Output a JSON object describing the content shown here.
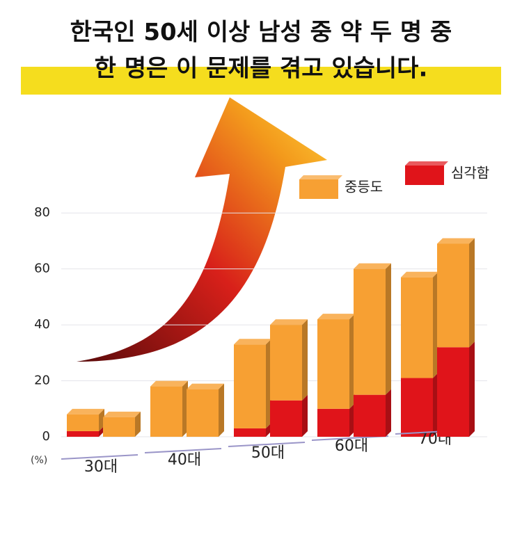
{
  "chart_data": {
    "type": "bar",
    "title": [
      "한국인 50세 이상 남성 중 약 두 명 중",
      "한 명은 이 문제를 겪고 있습니다."
    ],
    "y_unit": "(%)",
    "categories": [
      "30대",
      null,
      "40대",
      null,
      "50대",
      null,
      "60대",
      null,
      "70대",
      null
    ],
    "series": [
      {
        "name": "심각함",
        "color": "#e0141a",
        "values": [
          2,
          0,
          0,
          0,
          3,
          13,
          10,
          15,
          21,
          32
        ]
      },
      {
        "name": "중등도",
        "color": "#f7a033",
        "values": [
          6,
          7,
          18,
          17,
          30,
          27,
          32,
          45,
          36,
          37
        ]
      }
    ],
    "stacked": true,
    "ylim": [
      0,
      90
    ],
    "yticks": [
      0,
      20,
      40,
      60,
      80
    ],
    "grid": true
  }
}
